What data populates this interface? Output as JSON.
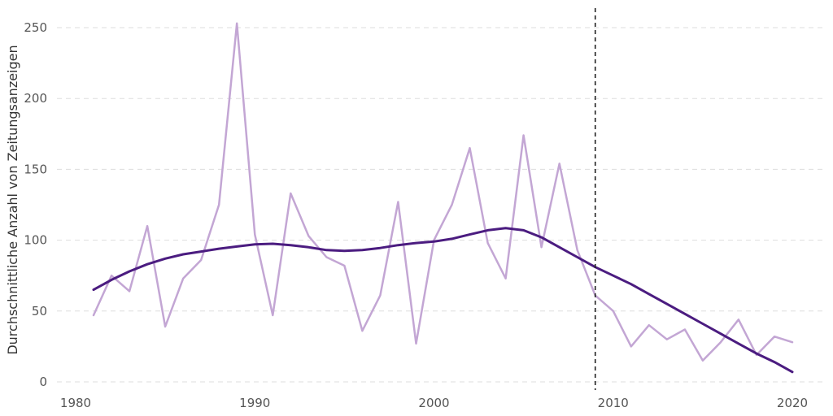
{
  "chart_data": {
    "type": "line",
    "title": "",
    "xlabel": "",
    "ylabel": "Durchschnittliche Anzahl von Zeitungsanzeigen",
    "xlim": [
      1979,
      2022
    ],
    "ylim": [
      0,
      260
    ],
    "x_ticks": [
      1980,
      1990,
      2000,
      2010,
      2020
    ],
    "y_ticks": [
      0,
      50,
      100,
      150,
      200,
      250
    ],
    "grid": "horizontal dashed",
    "legend": "none",
    "vertical_reference_line": {
      "x": 2009,
      "style": "dashed",
      "color": "#222222"
    },
    "series": [
      {
        "style": "raw",
        "color": "#c3a6d4",
        "x": [
          1981,
          1982,
          1983,
          1984,
          1985,
          1986,
          1987,
          1988,
          1989,
          1990,
          1991,
          1992,
          1993,
          1994,
          1995,
          1996,
          1997,
          1998,
          1999,
          2000,
          2001,
          2002,
          2003,
          2004,
          2005,
          2006,
          2007,
          2008,
          2009,
          2010,
          2011,
          2012,
          2013,
          2014,
          2015,
          2016,
          2017,
          2018,
          2019,
          2020
        ],
        "values": [
          47,
          75,
          64,
          110,
          39,
          73,
          86,
          125,
          253,
          104,
          47,
          133,
          103,
          88,
          82,
          36,
          61,
          127,
          27,
          100,
          125,
          165,
          98,
          73,
          174,
          95,
          154,
          93,
          61,
          50,
          25,
          40,
          30,
          37,
          15,
          28,
          44,
          19,
          32,
          28
        ]
      },
      {
        "style": "smoothed",
        "color": "#4b1c80",
        "x": [
          1981,
          1982,
          1983,
          1984,
          1985,
          1986,
          1987,
          1988,
          1989,
          1990,
          1991,
          1992,
          1993,
          1994,
          1995,
          1996,
          1997,
          1998,
          1999,
          2000,
          2001,
          2002,
          2003,
          2004,
          2005,
          2006,
          2007,
          2008,
          2009,
          2010,
          2011,
          2012,
          2013,
          2014,
          2015,
          2016,
          2017,
          2018,
          2019,
          2020
        ],
        "values": [
          65,
          72,
          78,
          83,
          87,
          90,
          92,
          94,
          95.5,
          97,
          97.5,
          96.5,
          95,
          93,
          92.5,
          93,
          94.5,
          96.5,
          98,
          99,
          101,
          104,
          107,
          108.5,
          107,
          102,
          95,
          88,
          81,
          75,
          69,
          62,
          55,
          48,
          41,
          34,
          27,
          20,
          14,
          7
        ]
      }
    ]
  }
}
